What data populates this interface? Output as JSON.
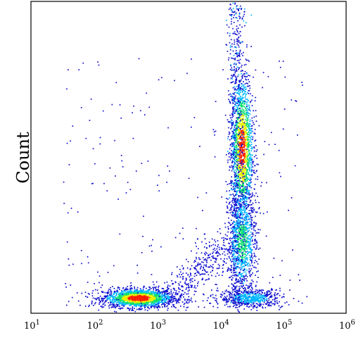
{
  "chart_data": {
    "type": "scatter",
    "subtype": "density-scatter (flow cytometry dot plot)",
    "title": "",
    "xlabel": "",
    "ylabel": "Count",
    "x_scale": "log",
    "xlim": [
      10,
      1000000
    ],
    "x_ticks": [
      {
        "base": "10",
        "exp": "1"
      },
      {
        "base": "10",
        "exp": "2"
      },
      {
        "base": "10",
        "exp": "3"
      },
      {
        "base": "10",
        "exp": "4"
      },
      {
        "base": "10",
        "exp": "5"
      },
      {
        "base": "10",
        "exp": "6"
      }
    ],
    "ylim": [
      0,
      1
    ],
    "y_ticks": [],
    "grid": false,
    "legend": "none",
    "colormap": [
      "#1010d0",
      "#00b8ff",
      "#10e070",
      "#e8f000",
      "#ff2000"
    ],
    "populations": [
      {
        "name": "",
        "center_x": 500,
        "center_y": 0.05,
        "spread_log_x": 0.28,
        "spread_y": 0.015,
        "relative_density": 1.0
      },
      {
        "name": "",
        "center_x": 22000,
        "center_y": 0.53,
        "spread_log_x": 0.09,
        "spread_y": 0.12,
        "relative_density": 0.95
      },
      {
        "name": "",
        "center_x": 22000,
        "center_y": 0.23,
        "spread_log_x": 0.11,
        "spread_y": 0.08,
        "relative_density": 0.55
      },
      {
        "name": "",
        "center_x": 30000,
        "center_y": 0.05,
        "spread_log_x": 0.25,
        "spread_y": 0.015,
        "relative_density": 0.35
      }
    ]
  }
}
